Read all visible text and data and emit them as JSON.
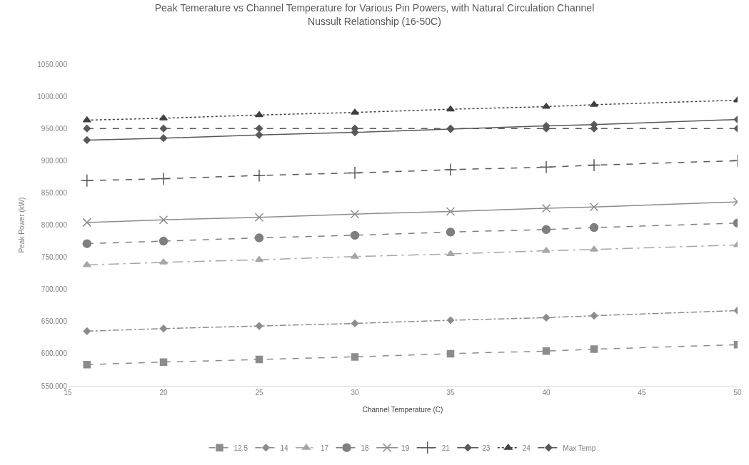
{
  "chart_data": {
    "type": "line",
    "title": "Peak Temerature vs Channel Temperature for Various Pin Powers, with Natural Circulation Channel\nNussult Relationship (16-50C)",
    "xlabel": "Channel Temperature (C)",
    "ylabel": "Peak Power (kW)",
    "x": [
      16,
      20,
      25,
      30,
      35,
      40,
      42.5,
      50
    ],
    "series": [
      {
        "name": "12.5",
        "color": "#8c8c8c",
        "marker": "square",
        "line_style": "dashed",
        "values": [
          583,
          587,
          591,
          595,
          600,
          604,
          607,
          614
        ]
      },
      {
        "name": "14",
        "color": "#8c8c8c",
        "marker": "diamond",
        "line_style": "dashdot",
        "values": [
          635,
          639,
          643,
          647,
          652,
          656,
          659,
          667
        ]
      },
      {
        "name": "17",
        "color": "#a6a6a6",
        "marker": "triangle",
        "line_style": "longdashdot",
        "values": [
          738,
          742,
          746,
          751,
          755,
          760,
          762,
          769
        ]
      },
      {
        "name": "18",
        "color": "#7f7f7f",
        "marker": "circle",
        "line_style": "dashed",
        "values": [
          771,
          775,
          780,
          784,
          789,
          793,
          796,
          803
        ]
      },
      {
        "name": "19",
        "color": "#8c8c8c",
        "marker": "x",
        "line_style": "solid",
        "values": [
          804,
          808,
          812,
          817,
          821,
          826,
          828,
          836
        ]
      },
      {
        "name": "21",
        "color": "#595959",
        "marker": "cross",
        "line_style": "dashed",
        "values": [
          869,
          872,
          877,
          881,
          886,
          890,
          893,
          900
        ]
      },
      {
        "name": "23",
        "color": "#595959",
        "marker": "diamond",
        "line_style": "solid",
        "values": [
          932,
          935,
          940,
          944,
          949,
          954,
          956,
          964
        ]
      },
      {
        "name": "24",
        "color": "#404040",
        "marker": "triangle",
        "line_style": "dotted",
        "values": [
          963,
          966,
          971,
          975,
          980,
          984,
          987,
          994
        ]
      },
      {
        "name": "Max Temp",
        "color": "#595959",
        "marker": "diamond",
        "line_style": "dashed",
        "values": [
          950,
          950,
          950,
          950,
          950,
          950,
          950,
          950
        ]
      }
    ],
    "xlim": [
      15,
      50
    ],
    "xticks": [
      15,
      20,
      25,
      30,
      35,
      40,
      45,
      50
    ],
    "ylim": [
      550,
      1050
    ],
    "yticks": [
      {
        "value": 550,
        "label": "550.000"
      },
      {
        "value": 600,
        "label": "600.000"
      },
      {
        "value": 650,
        "label": "650.000"
      },
      {
        "value": 700,
        "label": "700.000"
      },
      {
        "value": 750,
        "label": "750.000"
      },
      {
        "value": 800,
        "label": "800.000"
      },
      {
        "value": 850,
        "label": "850.000"
      },
      {
        "value": 900,
        "label": "900.000"
      },
      {
        "value": 950,
        "label": "950.000"
      },
      {
        "value": 1000,
        "label": "1000.000"
      },
      {
        "value": 1050,
        "label": "1050.000"
      }
    ],
    "grid": false,
    "legend": "bottom"
  }
}
